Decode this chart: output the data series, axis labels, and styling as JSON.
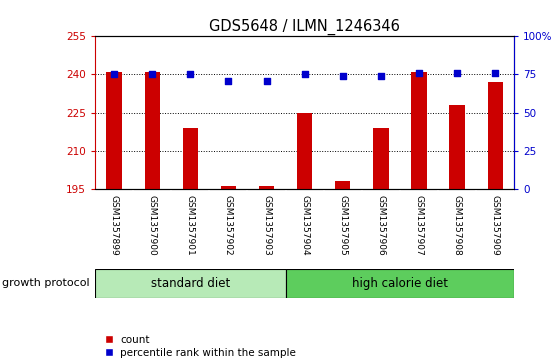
{
  "title": "GDS5648 / ILMN_1246346",
  "samples": [
    "GSM1357899",
    "GSM1357900",
    "GSM1357901",
    "GSM1357902",
    "GSM1357903",
    "GSM1357904",
    "GSM1357905",
    "GSM1357906",
    "GSM1357907",
    "GSM1357908",
    "GSM1357909"
  ],
  "counts": [
    241,
    241,
    219,
    196,
    196,
    225,
    198,
    219,
    241,
    228,
    237
  ],
  "percentiles": [
    75,
    75,
    75,
    71,
    71,
    75,
    74,
    74,
    76,
    76,
    76
  ],
  "ylim_left": [
    195,
    255
  ],
  "ylim_right": [
    0,
    100
  ],
  "yticks_left": [
    195,
    210,
    225,
    240,
    255
  ],
  "yticks_right": [
    0,
    25,
    50,
    75,
    100
  ],
  "ytick_labels_left": [
    "195",
    "210",
    "225",
    "240",
    "255"
  ],
  "ytick_labels_right": [
    "0",
    "25",
    "50",
    "75",
    "100%"
  ],
  "bar_color": "#cc0000",
  "dot_color": "#0000cc",
  "group1_label": "standard diet",
  "group2_label": "high calorie diet",
  "group1_indices": [
    0,
    1,
    2,
    3,
    4
  ],
  "group2_indices": [
    5,
    6,
    7,
    8,
    9,
    10
  ],
  "group_protocol_label": "growth protocol",
  "legend_count_label": "count",
  "legend_percentile_label": "percentile rank within the sample",
  "tick_area_color": "#d3d3d3",
  "group1_color": "#b7eab7",
  "group2_color": "#5dcd5d",
  "background_color": "#ffffff",
  "plot_area_color": "#ffffff",
  "left_tick_color": "#cc0000",
  "right_tick_color": "#0000cc",
  "bar_width": 0.4
}
